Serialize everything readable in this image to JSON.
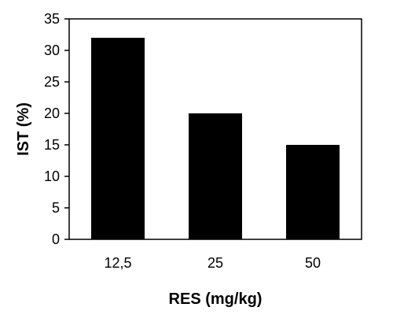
{
  "chart_data": {
    "type": "bar",
    "categories": [
      "12,5",
      "25",
      "50"
    ],
    "values": [
      32,
      20,
      15
    ],
    "xlabel": "RES (mg/kg)",
    "ylabel": "IST (%)",
    "ylim": [
      0,
      35
    ],
    "yticks": [
      0,
      5,
      10,
      15,
      20,
      25,
      30,
      35
    ],
    "grid": false,
    "legend": "none",
    "bar_color": "#000000"
  }
}
